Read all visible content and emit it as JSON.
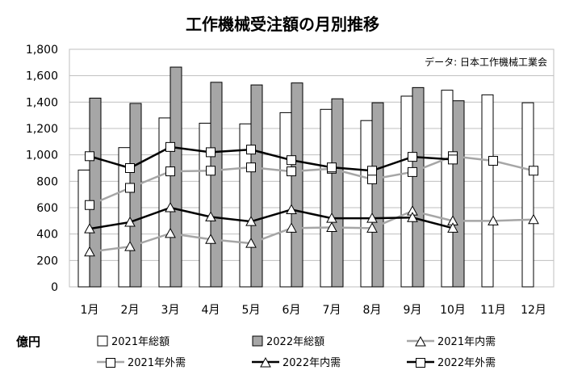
{
  "chart_data": {
    "type": "bar",
    "title": "工作機械受注額の月別推移",
    "source_note": "データ: 日本工作機械工業会",
    "unit_label": "億円",
    "categories": [
      "1月",
      "2月",
      "3月",
      "4月",
      "5月",
      "6月",
      "7月",
      "8月",
      "9月",
      "10月",
      "11月",
      "12月"
    ],
    "y_ticks": [
      "0",
      "200",
      "400",
      "600",
      "800",
      "1,000",
      "1,200",
      "1,400",
      "1,600",
      "1,800"
    ],
    "ylim": [
      0,
      1800
    ],
    "grid": true,
    "legend_position": "bottom",
    "series": [
      {
        "name": "2021年総額",
        "kind": "bar",
        "color": "#ffffff",
        "stroke": "#000000",
        "values": [
          885,
          1055,
          1280,
          1240,
          1235,
          1320,
          1345,
          1260,
          1445,
          1490,
          1455,
          1395
        ]
      },
      {
        "name": "2022年総額",
        "kind": "bar",
        "color": "#a6a6a6",
        "stroke": "#000000",
        "values": [
          1430,
          1390,
          1665,
          1550,
          1530,
          1545,
          1425,
          1395,
          1510,
          1410,
          null,
          null
        ]
      },
      {
        "name": "2021年内需",
        "kind": "line",
        "color": "#a6a6a6",
        "marker": "triangle",
        "values": [
          265,
          305,
          405,
          360,
          330,
          445,
          450,
          445,
          575,
          500,
          500,
          510
        ]
      },
      {
        "name": "2021年外需",
        "kind": "line",
        "color": "#a6a6a6",
        "marker": "square",
        "values": [
          620,
          750,
          875,
          880,
          905,
          875,
          895,
          815,
          870,
          990,
          955,
          880
        ]
      },
      {
        "name": "2022年内需",
        "kind": "line",
        "color": "#000000",
        "marker": "triangle",
        "values": [
          440,
          490,
          600,
          530,
          495,
          585,
          520,
          520,
          525,
          445,
          null,
          null
        ]
      },
      {
        "name": "2022年外需",
        "kind": "line",
        "color": "#000000",
        "marker": "square",
        "values": [
          990,
          900,
          1060,
          1020,
          1040,
          960,
          905,
          880,
          985,
          965,
          null,
          null
        ]
      }
    ]
  }
}
